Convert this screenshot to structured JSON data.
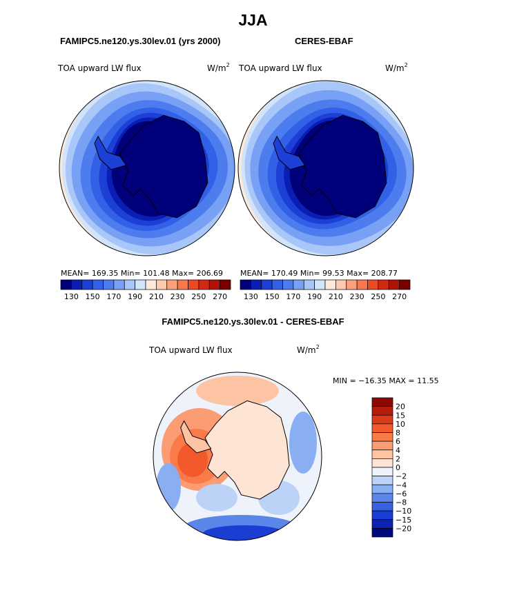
{
  "page": {
    "title": "JJA",
    "panel_left_title": "FAMIPC5.ne120.ys.30lev.01 (yrs 2000)",
    "panel_right_title": "CERES-EBAF",
    "diff_title": "FAMIPC5.ne120.ys.30lev.01 - CERES-EBAF"
  },
  "chart_data": [
    {
      "type": "heatmap",
      "projection": "south polar stereographic",
      "variable": "TOA upward LW flux",
      "units": "W/m2",
      "stats": {
        "mean_label": "MEAN=",
        "mean": "169.35",
        "min_label": "Min=",
        "min": "101.48",
        "max_label": "Max=",
        "max": "206.69"
      },
      "levels": [
        130,
        140,
        150,
        160,
        170,
        180,
        190,
        200,
        210,
        220,
        230,
        240,
        250,
        260,
        270
      ],
      "colorbar_tick_labels": [
        "130",
        "150",
        "170",
        "190",
        "210",
        "230",
        "250",
        "270"
      ],
      "colors": [
        "#00007a",
        "#0a1eb4",
        "#1c40d6",
        "#3260e6",
        "#4c7cee",
        "#78a0f4",
        "#a8c6f8",
        "#d2e4fa",
        "#fde9dc",
        "#fccbaf",
        "#fba07c",
        "#f7774e",
        "#ec4a26",
        "#d22a12",
        "#b0120a",
        "#7a0000"
      ]
    },
    {
      "type": "heatmap",
      "projection": "south polar stereographic",
      "variable": "TOA upward LW flux",
      "units": "W/m2",
      "stats": {
        "mean_label": "MEAN=",
        "mean": "170.49",
        "min_label": "Min=",
        "min": "99.53",
        "max_label": "Max=",
        "max": "208.77"
      },
      "levels": [
        130,
        140,
        150,
        160,
        170,
        180,
        190,
        200,
        210,
        220,
        230,
        240,
        250,
        260,
        270
      ],
      "colorbar_tick_labels": [
        "130",
        "150",
        "170",
        "190",
        "210",
        "230",
        "250",
        "270"
      ],
      "colors": [
        "#00007a",
        "#0a1eb4",
        "#1c40d6",
        "#3260e6",
        "#4c7cee",
        "#78a0f4",
        "#a8c6f8",
        "#d2e4fa",
        "#fde9dc",
        "#fccbaf",
        "#fba07c",
        "#f7774e",
        "#ec4a26",
        "#d22a12",
        "#b0120a",
        "#7a0000"
      ]
    },
    {
      "type": "heatmap",
      "projection": "south polar stereographic",
      "variable": "TOA upward LW flux",
      "units": "W/m2",
      "stats_text": "MIN = −16.35 MAX =  11.55",
      "levels": [
        -20,
        -15,
        -10,
        -8,
        -6,
        -4,
        -2,
        0,
        2,
        4,
        6,
        8,
        10,
        15,
        20
      ],
      "colorbar_tick_labels": [
        "20",
        "15",
        "10",
        "8",
        "6",
        "4",
        "2",
        "0",
        "−2",
        "−4",
        "−6",
        "−8",
        "−10",
        "−15",
        "−20"
      ],
      "colors": [
        "#8c0a04",
        "#b61c0c",
        "#dc3a18",
        "#f25a2c",
        "#fa7a4a",
        "#fc9c72",
        "#fdc4a4",
        "#fde4d4",
        "#eef2fb",
        "#bcd2f6",
        "#8aaef2",
        "#5a86ea",
        "#3462e0",
        "#1a3ed2",
        "#0c22b0",
        "#00087e"
      ]
    }
  ]
}
